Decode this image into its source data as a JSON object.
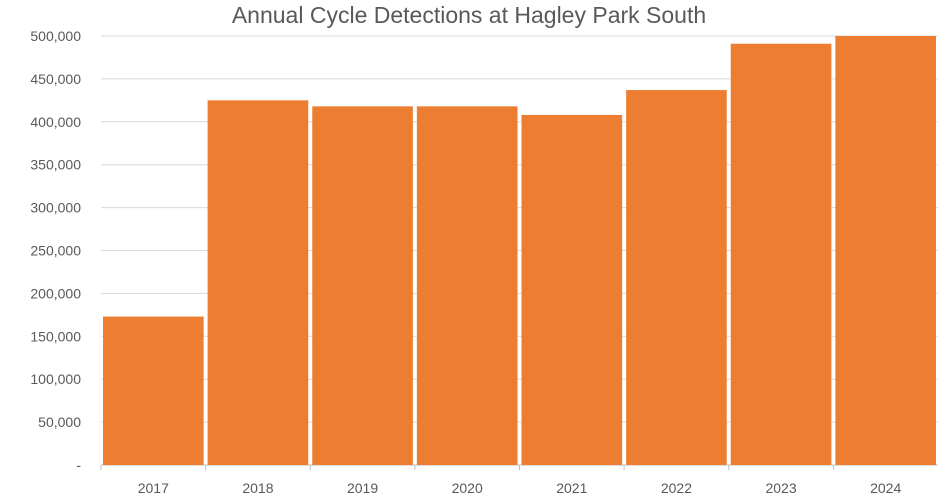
{
  "chart_data": {
    "type": "bar",
    "title": "Annual Cycle Detections at Hagley Park South",
    "xlabel": "",
    "ylabel": "",
    "categories": [
      "2017",
      "2018",
      "2019",
      "2020",
      "2021",
      "2022",
      "2023",
      "2024"
    ],
    "values": [
      173000,
      425000,
      418000,
      418000,
      408000,
      437000,
      491000,
      502000
    ],
    "ylim": [
      0,
      500000
    ],
    "y_ticks": [
      0,
      50000,
      100000,
      150000,
      200000,
      250000,
      300000,
      350000,
      400000,
      450000,
      500000
    ],
    "y_tick_labels": [
      "-",
      "50,000",
      "100,000",
      "150,000",
      "200,000",
      "250,000",
      "300,000",
      "350,000",
      "400,000",
      "450,000",
      "500,000"
    ],
    "grid": true,
    "legend": "none",
    "colors": {
      "bar": "#ED7D31",
      "grid": "#D9D9D9",
      "text": "#595959"
    }
  }
}
